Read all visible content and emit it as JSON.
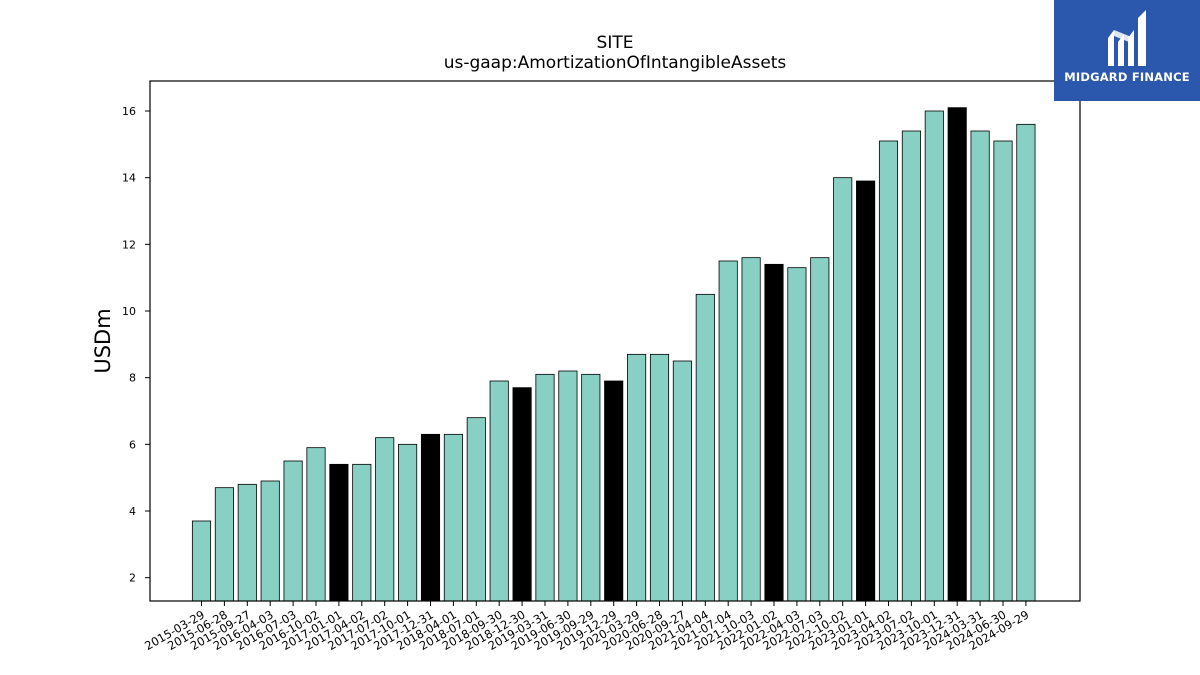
{
  "chart_data": {
    "type": "bar",
    "title": "SITE",
    "subtitle": "us-gaap:AmortizationOfIntangibleAssets",
    "xlabel": "",
    "ylabel": "USDm",
    "ylim": [
      1.3,
      16.9
    ],
    "yticks": [
      2,
      4,
      6,
      8,
      10,
      12,
      14,
      16
    ],
    "grid": false,
    "colors": {
      "standard": "#88d0c3",
      "highlight": "#000000",
      "edge": "#000000"
    },
    "categories": [
      "2015-03-29",
      "2015-06-28",
      "2015-09-27",
      "2016-04-03",
      "2016-07-03",
      "2016-10-02",
      "2017-01-01",
      "2017-04-02",
      "2017-07-02",
      "2017-10-01",
      "2017-12-31",
      "2018-04-01",
      "2018-07-01",
      "2018-09-30",
      "2018-12-30",
      "2019-03-31",
      "2019-06-30",
      "2019-09-29",
      "2019-12-29",
      "2020-03-29",
      "2020-06-28",
      "2020-09-27",
      "2021-04-04",
      "2021-07-04",
      "2021-10-03",
      "2022-01-02",
      "2022-04-03",
      "2022-07-03",
      "2022-10-02",
      "2023-01-01",
      "2023-04-02",
      "2023-07-02",
      "2023-10-01",
      "2023-12-31",
      "2024-03-31",
      "2024-06-30",
      "2024-09-29"
    ],
    "values": [
      3.7,
      4.7,
      4.8,
      4.9,
      5.5,
      5.9,
      5.4,
      5.4,
      6.2,
      6.0,
      6.3,
      6.3,
      6.8,
      7.9,
      7.7,
      8.1,
      8.2,
      8.1,
      7.9,
      8.7,
      8.7,
      8.5,
      10.5,
      11.5,
      11.6,
      11.4,
      11.3,
      11.6,
      14.0,
      13.9,
      15.1,
      15.4,
      16.0,
      16.1,
      15.4,
      15.1,
      15.6
    ],
    "highlighted": [
      false,
      false,
      false,
      false,
      false,
      false,
      true,
      false,
      false,
      false,
      true,
      false,
      false,
      false,
      true,
      false,
      false,
      false,
      true,
      false,
      false,
      false,
      false,
      false,
      false,
      true,
      false,
      false,
      false,
      true,
      false,
      false,
      false,
      true,
      false,
      false,
      false
    ]
  },
  "logo": {
    "text": "MIDGARD FINANCE",
    "background": "#2b57ad"
  }
}
